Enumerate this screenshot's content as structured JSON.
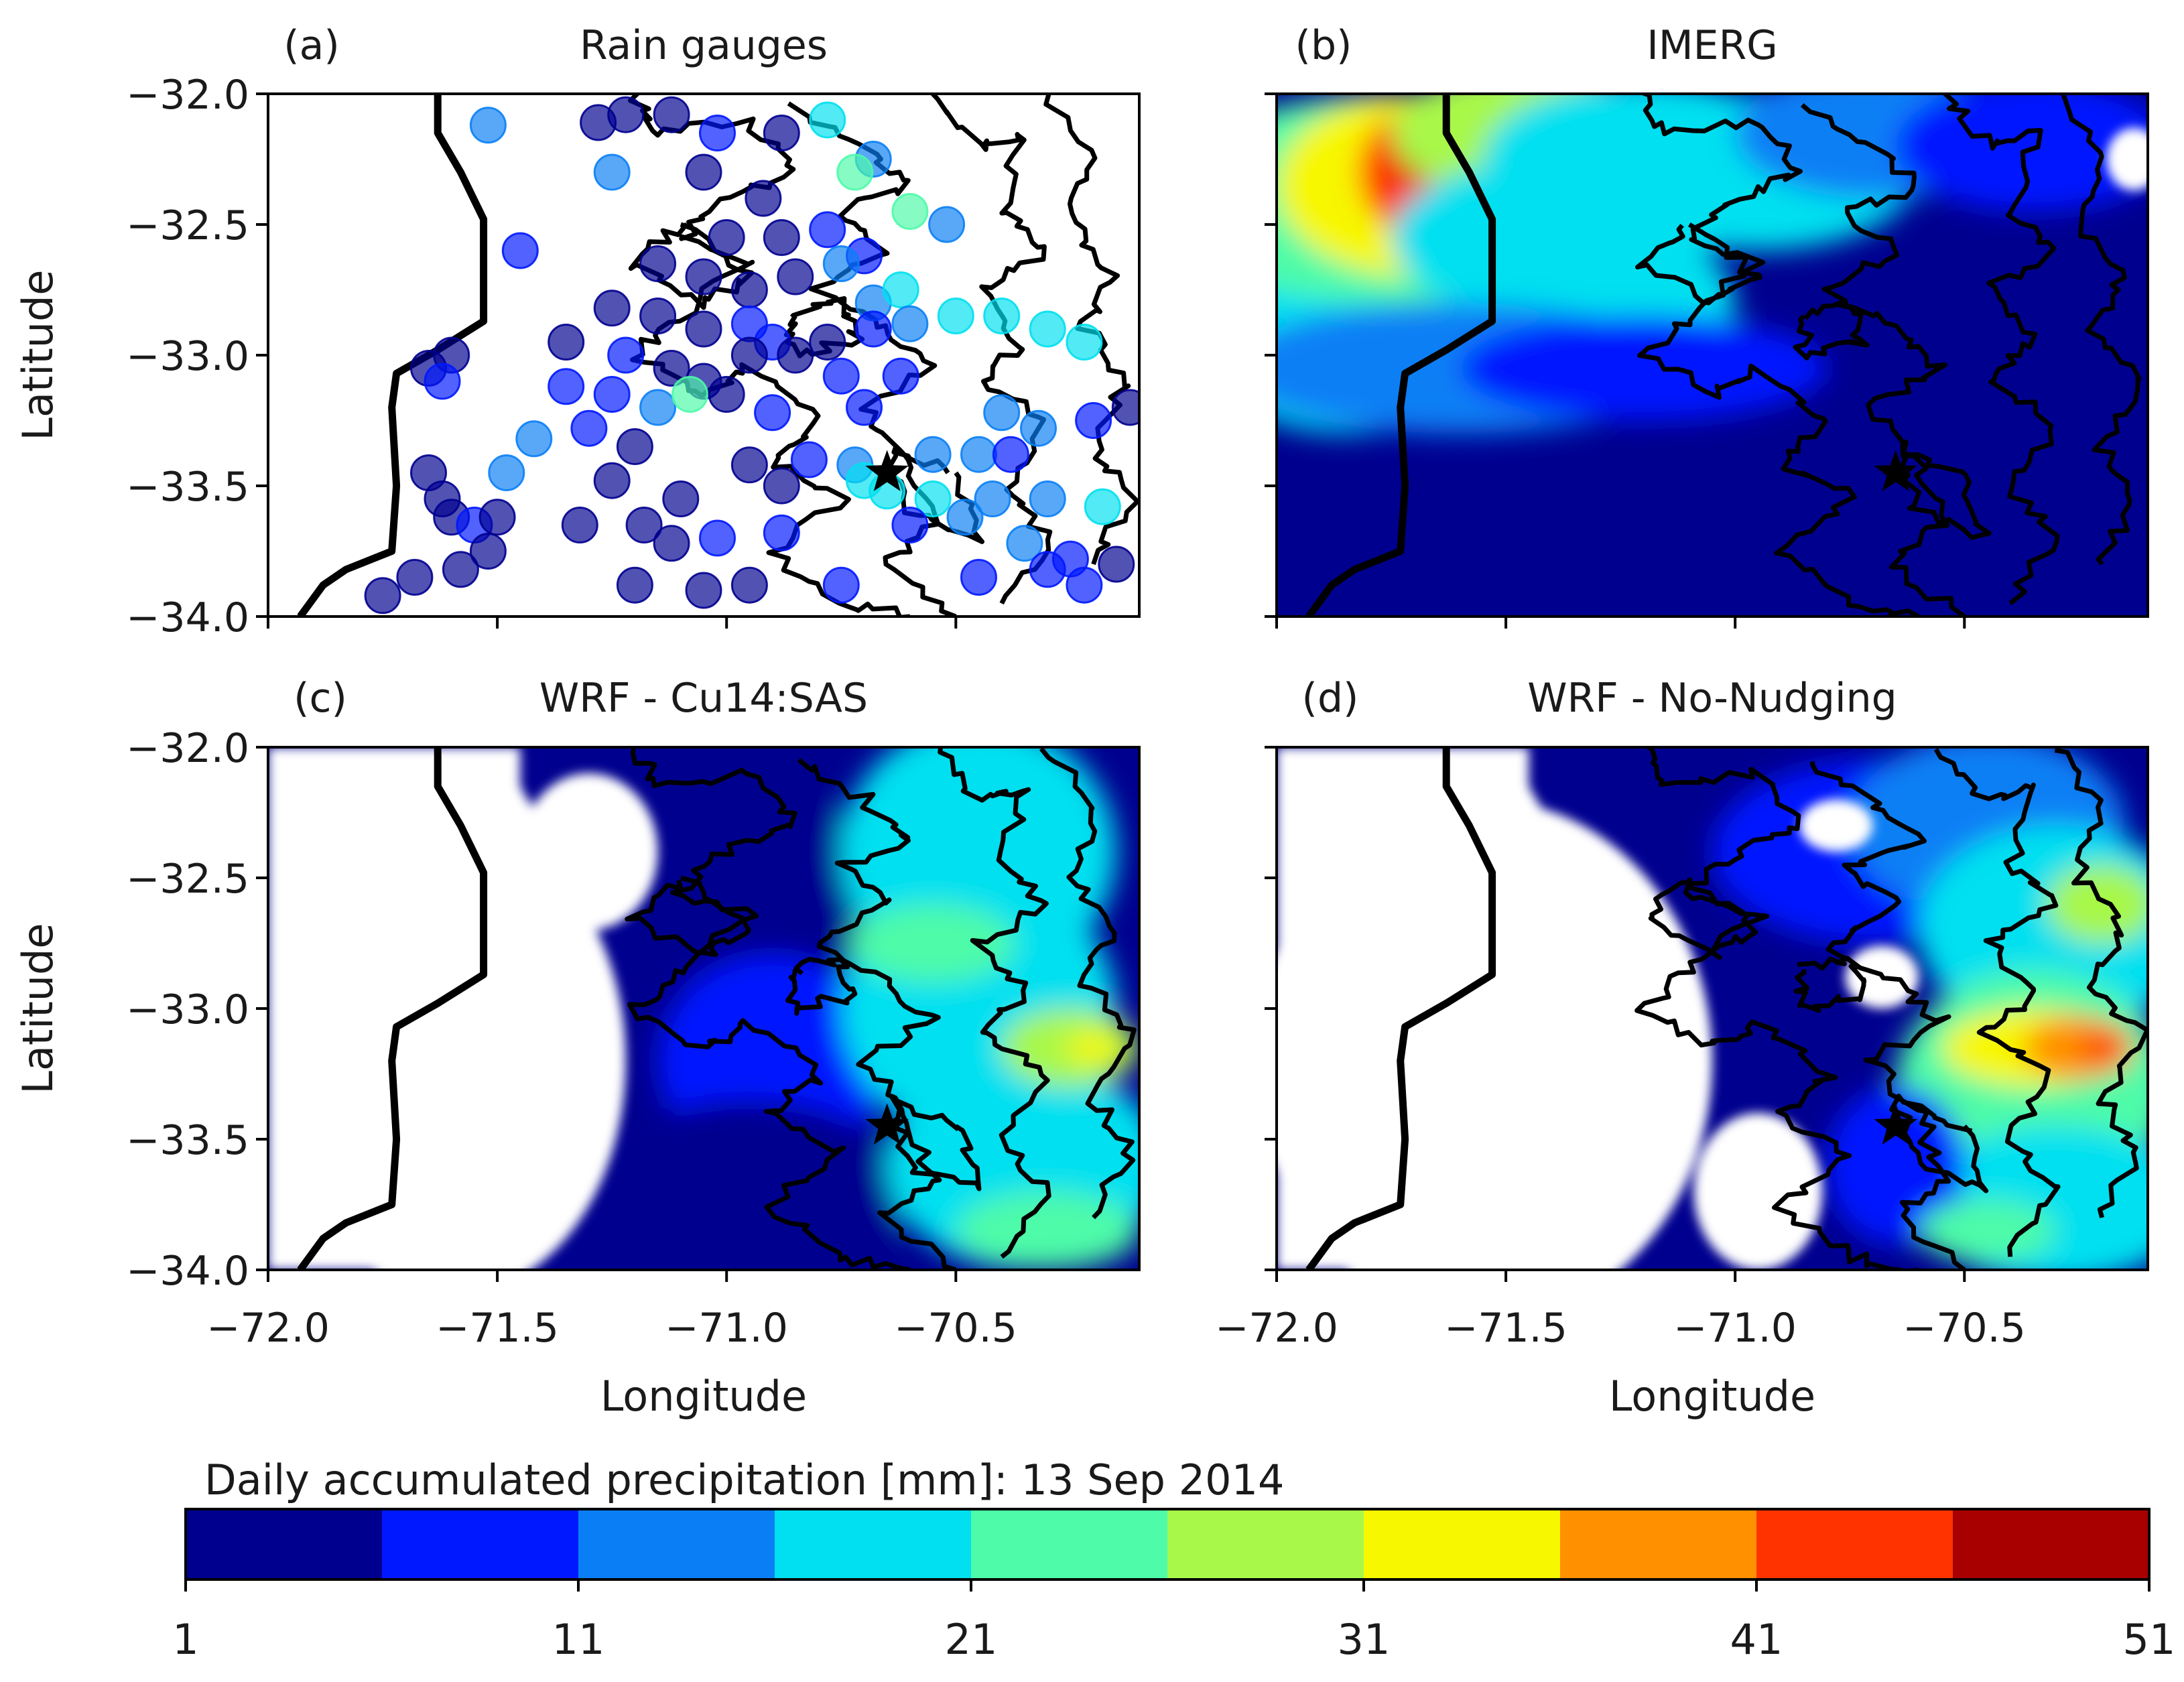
{
  "figure": {
    "colorbar_label": "Daily accumulated precipitation [mm]: 13 Sep 2014",
    "colorbar_ticks": [
      "1",
      "11",
      "21",
      "31",
      "41",
      "51"
    ],
    "colors": [
      "#00008f",
      "#0018ff",
      "#0a7ff5",
      "#00e0f0",
      "#4dfba8",
      "#a8f84a",
      "#f7f700",
      "#ff9000",
      "#ff3300",
      "#a80000"
    ]
  },
  "chart_data": [
    {
      "type": "scatter",
      "panel_label": "(a)",
      "title": "Rain gauges",
      "xlabel": "",
      "ylabel": "Latitude",
      "xlim": [
        -72.0,
        -70.1
      ],
      "ylim": [
        -34.0,
        -32.0
      ],
      "yticks": [
        "−32.0",
        "−32.5",
        "−33.0",
        "−33.5",
        "−34.0"
      ],
      "points": [
        [
          -71.52,
          -32.12,
          11
        ],
        [
          -71.28,
          -32.11,
          4
        ],
        [
          -71.22,
          -32.08,
          3
        ],
        [
          -71.12,
          -32.08,
          1
        ],
        [
          -71.02,
          -32.15,
          6
        ],
        [
          -70.88,
          -32.15,
          4
        ],
        [
          -70.78,
          -32.1,
          17
        ],
        [
          -70.68,
          -32.25,
          12
        ],
        [
          -70.72,
          -32.3,
          24
        ],
        [
          -70.6,
          -32.45,
          22
        ],
        [
          -70.52,
          -32.5,
          14
        ],
        [
          -71.25,
          -32.3,
          11
        ],
        [
          -71.05,
          -32.3,
          3
        ],
        [
          -70.92,
          -32.4,
          4
        ],
        [
          -71.0,
          -32.55,
          2
        ],
        [
          -70.88,
          -32.55,
          3
        ],
        [
          -70.78,
          -32.52,
          6
        ],
        [
          -70.7,
          -32.62,
          9
        ],
        [
          -71.45,
          -32.6,
          6
        ],
        [
          -71.15,
          -32.65,
          2
        ],
        [
          -71.05,
          -32.7,
          3
        ],
        [
          -70.95,
          -32.75,
          1
        ],
        [
          -70.85,
          -32.7,
          4
        ],
        [
          -70.75,
          -32.65,
          11
        ],
        [
          -70.68,
          -32.8,
          14
        ],
        [
          -70.62,
          -32.75,
          20
        ],
        [
          -71.25,
          -32.82,
          2
        ],
        [
          -71.15,
          -32.85,
          5
        ],
        [
          -71.05,
          -32.9,
          1
        ],
        [
          -70.95,
          -32.88,
          6
        ],
        [
          -70.9,
          -32.95,
          8
        ],
        [
          -70.78,
          -32.95,
          5
        ],
        [
          -70.68,
          -32.9,
          7
        ],
        [
          -70.6,
          -32.88,
          14
        ],
        [
          -70.5,
          -32.85,
          17
        ],
        [
          -70.4,
          -32.85,
          18
        ],
        [
          -70.3,
          -32.9,
          20
        ],
        [
          -70.22,
          -32.95,
          18
        ],
        [
          -71.6,
          -33.0,
          4
        ],
        [
          -71.65,
          -33.05,
          5
        ],
        [
          -71.62,
          -33.1,
          6
        ],
        [
          -71.35,
          -32.95,
          5
        ],
        [
          -71.22,
          -33.0,
          8
        ],
        [
          -71.12,
          -33.05,
          2
        ],
        [
          -71.05,
          -33.1,
          4
        ],
        [
          -70.95,
          -33.0,
          3
        ],
        [
          -70.85,
          -33.0,
          5
        ],
        [
          -70.75,
          -33.08,
          8
        ],
        [
          -70.62,
          -33.08,
          9
        ],
        [
          -71.35,
          -33.12,
          9
        ],
        [
          -71.25,
          -33.15,
          6
        ],
        [
          -71.15,
          -33.2,
          11
        ],
        [
          -71.08,
          -33.15,
          22
        ],
        [
          -71.0,
          -33.15,
          3
        ],
        [
          -70.9,
          -33.22,
          6
        ],
        [
          -70.7,
          -33.2,
          10
        ],
        [
          -70.4,
          -33.22,
          12
        ],
        [
          -70.32,
          -33.28,
          12
        ],
        [
          -70.2,
          -33.25,
          6
        ],
        [
          -70.12,
          -33.2,
          4
        ],
        [
          -71.42,
          -33.32,
          14
        ],
        [
          -71.3,
          -33.28,
          10
        ],
        [
          -71.2,
          -33.35,
          5
        ],
        [
          -70.95,
          -33.42,
          4
        ],
        [
          -70.82,
          -33.4,
          9
        ],
        [
          -70.72,
          -33.42,
          14
        ],
        [
          -70.55,
          -33.38,
          14
        ],
        [
          -70.45,
          -33.38,
          12
        ],
        [
          -70.38,
          -33.38,
          8
        ],
        [
          -71.48,
          -33.45,
          12
        ],
        [
          -71.25,
          -33.48,
          3
        ],
        [
          -71.1,
          -33.55,
          3
        ],
        [
          -70.88,
          -33.5,
          4
        ],
        [
          -70.7,
          -33.48,
          17
        ],
        [
          -70.65,
          -33.52,
          19
        ],
        [
          -70.55,
          -33.55,
          20
        ],
        [
          -70.42,
          -33.55,
          14
        ],
        [
          -70.3,
          -33.55,
          14
        ],
        [
          -70.18,
          -33.58,
          18
        ],
        [
          -71.65,
          -33.45,
          4
        ],
        [
          -71.62,
          -33.55,
          5
        ],
        [
          -71.6,
          -33.62,
          5
        ],
        [
          -71.55,
          -33.65,
          7
        ],
        [
          -71.5,
          -33.62,
          3
        ],
        [
          -71.32,
          -33.65,
          3
        ],
        [
          -71.18,
          -33.65,
          3
        ],
        [
          -71.12,
          -33.72,
          5
        ],
        [
          -71.02,
          -33.7,
          6
        ],
        [
          -70.88,
          -33.68,
          7
        ],
        [
          -70.6,
          -33.65,
          9
        ],
        [
          -70.48,
          -33.62,
          11
        ],
        [
          -70.35,
          -33.72,
          11
        ],
        [
          -70.25,
          -33.78,
          8
        ],
        [
          -70.15,
          -33.8,
          5
        ],
        [
          -71.52,
          -33.75,
          3
        ],
        [
          -71.58,
          -33.82,
          4
        ],
        [
          -71.68,
          -33.85,
          5
        ],
        [
          -71.75,
          -33.92,
          4
        ],
        [
          -71.2,
          -33.88,
          5
        ],
        [
          -71.05,
          -33.9,
          3
        ],
        [
          -70.95,
          -33.88,
          4
        ],
        [
          -70.75,
          -33.88,
          6
        ],
        [
          -70.45,
          -33.85,
          7
        ],
        [
          -70.3,
          -33.82,
          7
        ],
        [
          -70.22,
          -33.88,
          8
        ]
      ]
    },
    {
      "type": "heatmap",
      "panel_label": "(b)",
      "title": "IMERG",
      "xlabel": "",
      "ylabel": "",
      "xlim": [
        -72.0,
        -70.1
      ],
      "ylim": [
        -34.0,
        -32.0
      ],
      "blobs": [
        [
          -71.85,
          -32.85,
          0.35,
          0.45,
          16
        ],
        [
          -71.75,
          -32.4,
          0.5,
          0.4,
          22
        ],
        [
          -71.7,
          -32.35,
          0.3,
          0.35,
          32
        ],
        [
          -71.68,
          -32.3,
          0.14,
          0.25,
          42
        ],
        [
          -71.68,
          -32.26,
          0.06,
          0.06,
          50
        ],
        [
          -71.45,
          -32.15,
          0.3,
          0.25,
          28
        ],
        [
          -71.2,
          -32.25,
          0.35,
          0.3,
          19
        ],
        [
          -70.95,
          -32.3,
          0.35,
          0.3,
          16
        ],
        [
          -71.4,
          -32.55,
          0.35,
          0.3,
          19
        ],
        [
          -71.3,
          -32.8,
          0.3,
          0.3,
          16
        ],
        [
          -70.7,
          -32.15,
          0.3,
          0.25,
          13
        ],
        [
          -70.35,
          -32.2,
          0.3,
          0.25,
          8
        ],
        [
          -71.6,
          -33.05,
          0.5,
          0.25,
          11
        ],
        [
          -71.2,
          -33.05,
          0.4,
          0.2,
          8
        ]
      ],
      "blank_regions": [
        [
          -70.13,
          -32.25,
          0.06,
          0.12
        ]
      ]
    },
    {
      "type": "heatmap",
      "panel_label": "(c)",
      "title": "WRF - Cu14:SAS",
      "xlabel": "Longitude",
      "ylabel": "Latitude",
      "xlim": [
        -72.0,
        -70.1
      ],
      "ylim": [
        -34.0,
        -32.0
      ],
      "xticks": [
        "−72.0",
        "−71.5",
        "−71.0",
        "−70.5"
      ],
      "yticks": [
        "−32.0",
        "−32.5",
        "−33.0",
        "−33.5",
        "−34.0"
      ],
      "blobs": [
        [
          -71.25,
          -32.1,
          0.35,
          0.12,
          4
        ],
        [
          -70.95,
          -32.55,
          0.3,
          0.4,
          5
        ],
        [
          -70.9,
          -33.2,
          0.25,
          0.4,
          6
        ],
        [
          -70.95,
          -33.7,
          0.35,
          0.35,
          5
        ],
        [
          -70.45,
          -32.4,
          0.3,
          0.5,
          16
        ],
        [
          -70.45,
          -33.0,
          0.3,
          0.5,
          17
        ],
        [
          -70.35,
          -33.6,
          0.3,
          0.4,
          18
        ],
        [
          -70.55,
          -32.75,
          0.18,
          0.15,
          24
        ],
        [
          -70.25,
          -33.15,
          0.15,
          0.15,
          28
        ],
        [
          -70.2,
          -33.15,
          0.06,
          0.06,
          33
        ],
        [
          -70.3,
          -33.85,
          0.2,
          0.15,
          22
        ]
      ],
      "blank_regions": [
        [
          -71.6,
          -33.2,
          0.38,
          0.9
        ],
        [
          -71.3,
          -32.4,
          0.15,
          0.3
        ]
      ]
    },
    {
      "type": "heatmap",
      "panel_label": "(d)",
      "title": "WRF - No-Nudging",
      "xlabel": "Longitude",
      "ylabel": "",
      "xlim": [
        -72.0,
        -70.1
      ],
      "ylim": [
        -34.0,
        -32.0
      ],
      "xticks": [
        "−72.0",
        "−71.5",
        "−71.0",
        "−70.5"
      ],
      "blobs": [
        [
          -70.7,
          -32.4,
          0.35,
          0.35,
          6
        ],
        [
          -70.45,
          -32.3,
          0.3,
          0.35,
          14
        ],
        [
          -70.3,
          -32.7,
          0.3,
          0.4,
          19
        ],
        [
          -70.35,
          -33.3,
          0.3,
          0.45,
          21
        ],
        [
          -70.3,
          -33.75,
          0.3,
          0.3,
          20
        ],
        [
          -70.35,
          -33.15,
          0.2,
          0.15,
          31
        ],
        [
          -70.25,
          -33.15,
          0.12,
          0.12,
          38
        ],
        [
          -70.2,
          -33.15,
          0.05,
          0.05,
          44
        ],
        [
          -70.2,
          -32.6,
          0.12,
          0.15,
          28
        ],
        [
          -70.65,
          -33.6,
          0.15,
          0.3,
          10
        ],
        [
          -70.45,
          -33.85,
          0.15,
          0.12,
          22
        ]
      ],
      "blank_regions": [
        [
          -71.55,
          -33.2,
          0.5,
          1.0
        ],
        [
          -70.95,
          -33.7,
          0.14,
          0.3
        ],
        [
          -70.68,
          -32.88,
          0.08,
          0.12
        ],
        [
          -70.78,
          -32.3,
          0.08,
          0.1
        ]
      ]
    }
  ]
}
